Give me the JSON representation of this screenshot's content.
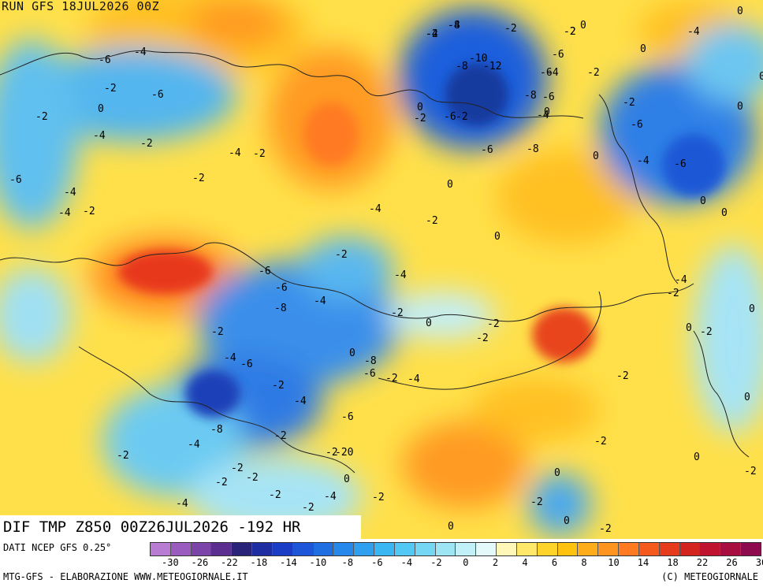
{
  "header": {
    "run_title": "RUN GFS 18JUL2026 00Z"
  },
  "panel": {
    "title": "DIF TMP Z850 00Z26JUL2026 -192 HR"
  },
  "legend": {
    "source": "DATI NCEP GFS 0.25°",
    "colors": [
      "#b87cd3",
      "#9a5dbf",
      "#7c43a8",
      "#5c2e8f",
      "#2a237a",
      "#1f2da3",
      "#1b3cc4",
      "#1d56d8",
      "#1f6fe2",
      "#2688eb",
      "#2f9ff0",
      "#3ab6f3",
      "#52c8f4",
      "#75d7f3",
      "#9de4f5",
      "#c2f0f8",
      "#e4f9fa",
      "#fff7b8",
      "#ffe86a",
      "#ffd42a",
      "#ffc20f",
      "#ffac1a",
      "#ff9420",
      "#ff7a20",
      "#f55a1c",
      "#e63b1c",
      "#d4241f",
      "#c01330",
      "#a80d40",
      "#8e0a4e"
    ],
    "ticks": [
      "-30",
      "-26",
      "-22",
      "-18",
      "-14",
      "-10",
      "-8",
      "-6",
      "-4",
      "-2",
      "0",
      "2",
      "4",
      "6",
      "8",
      "10",
      "14",
      "18",
      "22",
      "26",
      "30"
    ]
  },
  "footer": {
    "left": "MTG-GFS - ELABORAZIONE WWW.METEOGIORNALE.IT",
    "right": "(C) METEOGIORNALE"
  },
  "map_labels": [
    "-4",
    "-8",
    "-2",
    "0",
    "-4",
    "-10",
    "-8",
    "-12",
    "-6",
    "-2",
    "0",
    "-2",
    "-8",
    "-6",
    "-2",
    "-6",
    "-4",
    "0",
    "-6",
    "-2",
    "-2",
    "-4",
    "-2",
    "-6",
    "-4",
    "0",
    "-4",
    "-2",
    "-2",
    "-6",
    "-4",
    "-4",
    "-6",
    "-8",
    "-6",
    "-4",
    "-6",
    "-6",
    "0",
    "-4",
    "-4",
    "-2",
    "-2",
    "0",
    "0",
    "0",
    "0",
    "-2",
    "-4",
    "-2",
    "0",
    "-2",
    "-4",
    "-6",
    "-6",
    "-8",
    "-4",
    "-2",
    "0",
    "-2",
    "-2",
    "0",
    "-8",
    "-6",
    "-2",
    "-4",
    "-2",
    "-4",
    "-6",
    "-4",
    "-2",
    "-6",
    "-8",
    "-4",
    "-2",
    "-2",
    "-2",
    "-20",
    "0",
    "-4",
    "-2",
    "-2",
    "-2",
    "-2",
    "-2",
    "-4",
    "0",
    "-2",
    "-2",
    "0",
    "0",
    "-2",
    "-2",
    "0",
    "-2",
    "0",
    "-2",
    "-2",
    "0",
    "0",
    "-4",
    "-2",
    "0",
    "0",
    "0",
    "-2",
    "-4",
    "-2"
  ]
}
